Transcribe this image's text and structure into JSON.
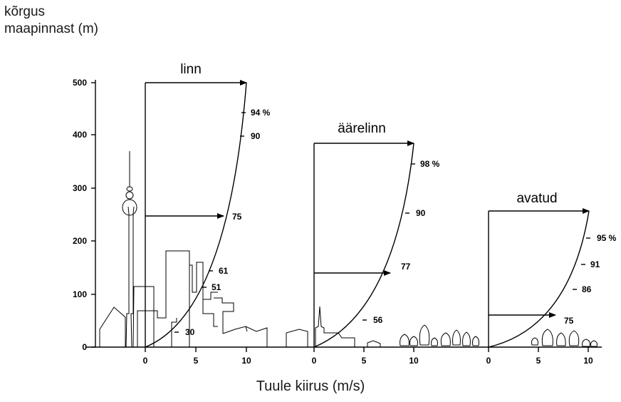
{
  "y_axis_title_line1": "kõrgus",
  "y_axis_title_line2": "maapinnast (m)",
  "x_axis_title": "Tuule kiirus (m/s)",
  "y_ticks": [
    "0",
    "100",
    "200",
    "300",
    "400",
    "500"
  ],
  "panels": [
    {
      "label": "linn",
      "x_ticks": [
        "0",
        "5",
        "10"
      ],
      "percent_labels": [
        "94 %",
        "90",
        "75",
        "61",
        "51",
        "30"
      ]
    },
    {
      "label": "äärelinn",
      "x_ticks": [
        "0",
        "5",
        "10"
      ],
      "percent_labels": [
        "98 %",
        "90",
        "77",
        "56"
      ]
    },
    {
      "label": "avatud",
      "x_ticks": [
        "0",
        "5",
        "10"
      ],
      "percent_labels": [
        "95 %",
        "91",
        "86",
        "75"
      ]
    }
  ]
}
